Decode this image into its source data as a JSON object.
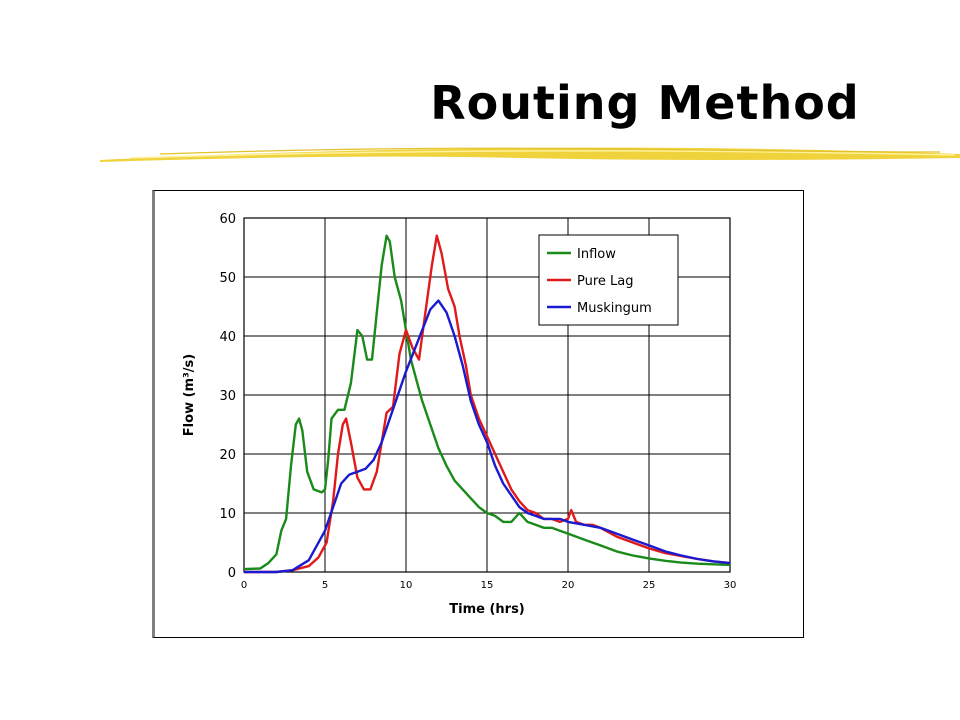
{
  "slide": {
    "title": "Routing Method",
    "colors": {
      "underline": "#f0d23c",
      "underline_light": "#fff199"
    }
  },
  "chart_data": {
    "type": "line",
    "xlabel": "Time (hrs)",
    "ylabel": "Flow (m³/s)",
    "xlim": [
      0,
      30
    ],
    "ylim": [
      0,
      60
    ],
    "xticks": [
      0,
      5,
      10,
      15,
      20,
      25,
      30
    ],
    "yticks": [
      0,
      10,
      20,
      30,
      40,
      50,
      60
    ],
    "grid": true,
    "legend_position": "top-right",
    "series": [
      {
        "name": "Inflow",
        "color": "#1a8a1a",
        "points": [
          [
            0,
            0.5
          ],
          [
            1,
            0.6
          ],
          [
            1.5,
            1.5
          ],
          [
            2,
            3
          ],
          [
            2.3,
            7
          ],
          [
            2.6,
            9
          ],
          [
            2.9,
            18
          ],
          [
            3.2,
            25
          ],
          [
            3.4,
            26
          ],
          [
            3.6,
            24
          ],
          [
            3.9,
            17
          ],
          [
            4.3,
            14
          ],
          [
            4.8,
            13.5
          ],
          [
            5,
            14
          ],
          [
            5.2,
            19
          ],
          [
            5.4,
            26
          ],
          [
            5.8,
            27.5
          ],
          [
            6.2,
            27.5
          ],
          [
            6.6,
            32
          ],
          [
            7,
            41
          ],
          [
            7.3,
            40
          ],
          [
            7.6,
            36
          ],
          [
            7.9,
            36
          ],
          [
            8.2,
            44
          ],
          [
            8.5,
            52
          ],
          [
            8.8,
            57
          ],
          [
            9,
            56
          ],
          [
            9.3,
            50
          ],
          [
            9.7,
            46
          ],
          [
            10,
            41
          ],
          [
            10.3,
            36
          ],
          [
            10.7,
            32
          ],
          [
            11,
            29
          ],
          [
            11.5,
            25
          ],
          [
            12,
            21
          ],
          [
            12.5,
            18
          ],
          [
            13,
            15.5
          ],
          [
            13.5,
            14
          ],
          [
            14,
            12.5
          ],
          [
            14.5,
            11
          ],
          [
            15,
            10
          ],
          [
            15.5,
            9.5
          ],
          [
            16,
            8.5
          ],
          [
            16.5,
            8.5
          ],
          [
            17,
            10
          ],
          [
            17.5,
            8.5
          ],
          [
            18,
            8
          ],
          [
            18.5,
            7.5
          ],
          [
            19,
            7.5
          ],
          [
            19.5,
            7
          ],
          [
            20,
            6.5
          ],
          [
            21,
            5.5
          ],
          [
            22,
            4.5
          ],
          [
            23,
            3.5
          ],
          [
            24,
            2.8
          ],
          [
            25,
            2.3
          ],
          [
            26,
            1.9
          ],
          [
            27,
            1.6
          ],
          [
            28,
            1.4
          ],
          [
            29,
            1.3
          ],
          [
            30,
            1.2
          ]
        ]
      },
      {
        "name": "Pure Lag",
        "color": "#e01a1a",
        "points": [
          [
            0,
            0
          ],
          [
            2,
            0
          ],
          [
            3,
            0.3
          ],
          [
            4,
            1
          ],
          [
            4.6,
            2.5
          ],
          [
            5.1,
            5
          ],
          [
            5.5,
            12
          ],
          [
            5.8,
            20
          ],
          [
            6.1,
            25
          ],
          [
            6.3,
            26
          ],
          [
            6.6,
            22
          ],
          [
            7,
            16
          ],
          [
            7.4,
            14
          ],
          [
            7.8,
            14
          ],
          [
            8.2,
            17
          ],
          [
            8.5,
            22
          ],
          [
            8.8,
            27
          ],
          [
            9.2,
            28
          ],
          [
            9.6,
            37
          ],
          [
            10,
            41
          ],
          [
            10.4,
            38
          ],
          [
            10.8,
            36
          ],
          [
            11.2,
            44
          ],
          [
            11.6,
            52
          ],
          [
            11.9,
            57
          ],
          [
            12.2,
            54
          ],
          [
            12.6,
            48
          ],
          [
            13,
            45
          ],
          [
            13.3,
            40
          ],
          [
            13.7,
            35
          ],
          [
            14,
            30
          ],
          [
            14.5,
            26
          ],
          [
            15,
            23
          ],
          [
            15.5,
            20
          ],
          [
            16,
            17
          ],
          [
            16.5,
            14
          ],
          [
            17,
            12
          ],
          [
            17.5,
            10.5
          ],
          [
            18,
            10
          ],
          [
            18.5,
            9
          ],
          [
            19,
            9
          ],
          [
            19.5,
            8.5
          ],
          [
            20,
            9
          ],
          [
            20.2,
            10.5
          ],
          [
            20.5,
            8.5
          ],
          [
            21,
            8
          ],
          [
            21.5,
            8
          ],
          [
            22,
            7.5
          ],
          [
            23,
            6
          ],
          [
            24,
            5
          ],
          [
            25,
            4
          ],
          [
            26,
            3.2
          ],
          [
            27,
            2.7
          ],
          [
            28,
            2.2
          ],
          [
            29,
            1.8
          ],
          [
            30,
            1.5
          ]
        ]
      },
      {
        "name": "Muskingum",
        "color": "#1a1ad0",
        "points": [
          [
            0,
            0
          ],
          [
            2,
            0
          ],
          [
            3,
            0.3
          ],
          [
            4,
            2
          ],
          [
            5,
            7
          ],
          [
            5.5,
            11
          ],
          [
            6,
            15
          ],
          [
            6.5,
            16.5
          ],
          [
            7,
            17
          ],
          [
            7.5,
            17.5
          ],
          [
            8,
            19
          ],
          [
            8.5,
            22
          ],
          [
            9,
            26
          ],
          [
            9.5,
            30
          ],
          [
            10,
            34
          ],
          [
            10.5,
            37.5
          ],
          [
            11,
            41
          ],
          [
            11.5,
            44.5
          ],
          [
            12,
            46
          ],
          [
            12.5,
            44
          ],
          [
            13,
            40
          ],
          [
            13.5,
            35
          ],
          [
            14,
            29
          ],
          [
            14.5,
            25
          ],
          [
            15,
            22
          ],
          [
            15.5,
            18
          ],
          [
            16,
            15
          ],
          [
            16.5,
            13
          ],
          [
            17,
            11
          ],
          [
            17.5,
            10
          ],
          [
            18,
            9.5
          ],
          [
            18.5,
            9
          ],
          [
            19,
            9
          ],
          [
            19.5,
            9
          ],
          [
            20,
            8.5
          ],
          [
            21,
            8
          ],
          [
            22,
            7.5
          ],
          [
            23,
            6.5
          ],
          [
            24,
            5.5
          ],
          [
            25,
            4.5
          ],
          [
            26,
            3.5
          ],
          [
            27,
            2.8
          ],
          [
            28,
            2.2
          ],
          [
            29,
            1.8
          ],
          [
            30,
            1.5
          ]
        ]
      }
    ]
  }
}
